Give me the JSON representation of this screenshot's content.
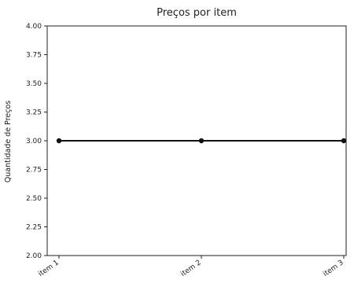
{
  "chart_data": {
    "type": "line",
    "title": "Preços por item",
    "xlabel": "",
    "ylabel": "Quantidade de Preços",
    "categories": [
      "item 1",
      "item 2",
      "item 3"
    ],
    "series": [
      {
        "values": [
          3.0,
          3.0,
          3.0
        ]
      }
    ],
    "ylim": [
      2.0,
      4.0
    ],
    "yticks": [
      2.0,
      2.25,
      2.5,
      2.75,
      3.0,
      3.25,
      3.5,
      3.75,
      4.0
    ],
    "ytick_labels": [
      "2.00",
      "2.25",
      "2.50",
      "2.75",
      "3.00",
      "3.25",
      "3.50",
      "3.75",
      "4.00"
    ],
    "grid": false,
    "line_color": "#111111",
    "marker": "circle"
  }
}
